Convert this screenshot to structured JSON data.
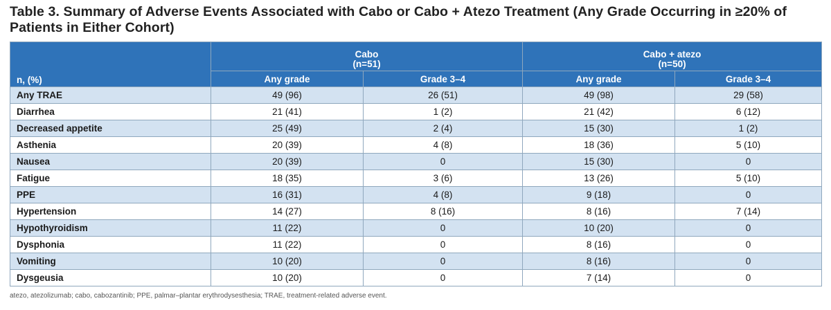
{
  "title": "Table 3. Summary of Adverse Events Associated with Cabo or Cabo + Atezo Treatment (Any Grade Occurring in ≥20% of Patients in Either Cohort)",
  "table": {
    "row_header": "n, (%)",
    "groups": [
      {
        "name": "Cabo",
        "n": "(n=51)"
      },
      {
        "name": "Cabo + atezo",
        "n": "(n=50)"
      }
    ],
    "subheaders": [
      "Any grade",
      "Grade 3–4",
      "Any grade",
      "Grade 3–4"
    ],
    "rows": [
      {
        "event": "Any TRAE",
        "cells": [
          "49 (96)",
          "26 (51)",
          "49 (98)",
          "29 (58)"
        ]
      },
      {
        "event": "Diarrhea",
        "cells": [
          "21 (41)",
          "1 (2)",
          "21 (42)",
          "6 (12)"
        ]
      },
      {
        "event": "Decreased appetite",
        "cells": [
          "25 (49)",
          "2 (4)",
          "15 (30)",
          "1 (2)"
        ]
      },
      {
        "event": "Asthenia",
        "cells": [
          "20 (39)",
          "4 (8)",
          "18 (36)",
          "5 (10)"
        ]
      },
      {
        "event": "Nausea",
        "cells": [
          "20 (39)",
          "0",
          "15 (30)",
          "0"
        ]
      },
      {
        "event": "Fatigue",
        "cells": [
          "18 (35)",
          "3 (6)",
          "13 (26)",
          "5 (10)"
        ]
      },
      {
        "event": "PPE",
        "cells": [
          "16 (31)",
          "4 (8)",
          "9 (18)",
          "0"
        ]
      },
      {
        "event": "Hypertension",
        "cells": [
          "14 (27)",
          "8 (16)",
          "8 (16)",
          "7 (14)"
        ]
      },
      {
        "event": "Hypothyroidism",
        "cells": [
          "11 (22)",
          "0",
          "10 (20)",
          "0"
        ]
      },
      {
        "event": "Dysphonia",
        "cells": [
          "11 (22)",
          "0",
          "8 (16)",
          "0"
        ]
      },
      {
        "event": "Vomiting",
        "cells": [
          "10 (20)",
          "0",
          "8 (16)",
          "0"
        ]
      },
      {
        "event": "Dysgeusia",
        "cells": [
          "10 (20)",
          "0",
          "7 (14)",
          "0"
        ]
      }
    ]
  },
  "footnote": "atezo, atezolizumab; cabo, cabozantinib; PPE, palmar–plantar erythrodysesthesia; TRAE, treatment-related adverse event.",
  "colors": {
    "header_bg": "#2f73b9",
    "stripe_bg": "#d3e2f1",
    "header_text": "#ffffff"
  }
}
